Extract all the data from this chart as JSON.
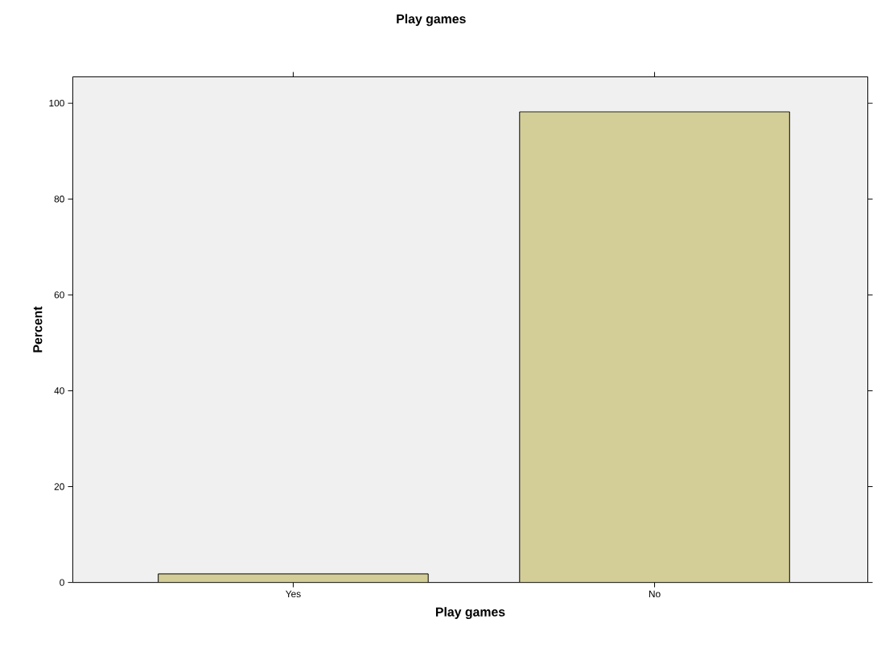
{
  "chart_data": {
    "type": "bar",
    "title": "Play games",
    "xlabel": "Play games",
    "ylabel": "Percent",
    "categories": [
      "Yes",
      "No"
    ],
    "values": [
      1.8,
      98.2
    ],
    "color": "#d3ce97",
    "ylim": [
      0,
      105.5
    ],
    "yticks": [
      0,
      20,
      40,
      60,
      80,
      100
    ]
  }
}
